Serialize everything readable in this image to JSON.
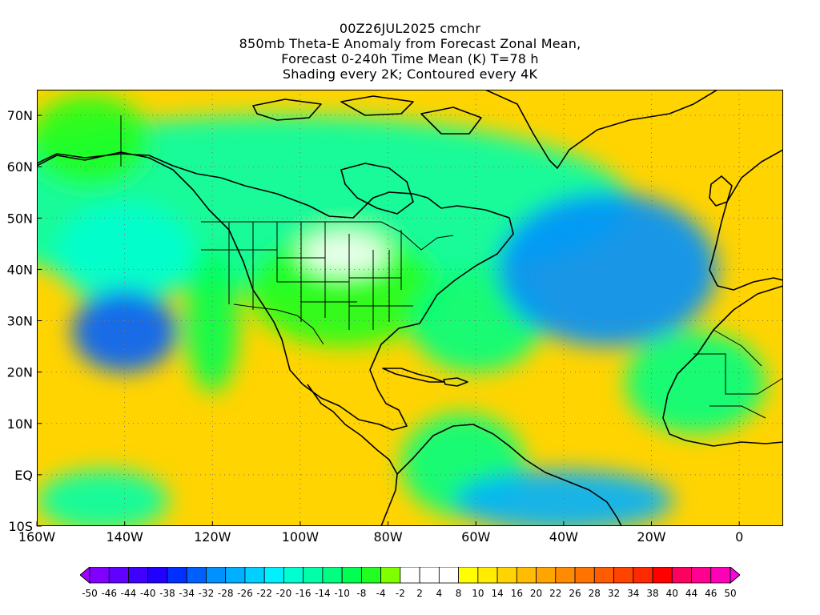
{
  "title_lines": [
    "00Z26JUL2025 cmchr",
    "850mb Theta-E Anomaly from Forecast Zonal Mean,",
    "Forecast 0-240h Time Mean (K) T=78 h",
    "Shading every 2K; Contoured every 4K"
  ],
  "chart_data": {
    "type": "heatmap",
    "projection": "lat-lon",
    "grid": "dotted",
    "axes": {
      "x_range_deg": [
        -160,
        10
      ],
      "y_range_deg": [
        -10,
        75
      ],
      "x_ticks": [
        {
          "value": -160,
          "label": "160W"
        },
        {
          "value": -140,
          "label": "140W"
        },
        {
          "value": -120,
          "label": "120W"
        },
        {
          "value": -100,
          "label": "100W"
        },
        {
          "value": -80,
          "label": "80W"
        },
        {
          "value": -60,
          "label": "60W"
        },
        {
          "value": -40,
          "label": "40W"
        },
        {
          "value": -20,
          "label": "20W"
        },
        {
          "value": 0,
          "label": "0"
        }
      ],
      "y_ticks": [
        {
          "value": -10,
          "label": "10S"
        },
        {
          "value": 0,
          "label": "EQ"
        },
        {
          "value": 10,
          "label": "10N"
        },
        {
          "value": 20,
          "label": "20N"
        },
        {
          "value": 30,
          "label": "30N"
        },
        {
          "value": 40,
          "label": "40N"
        },
        {
          "value": 50,
          "label": "50N"
        },
        {
          "value": 60,
          "label": "60N"
        },
        {
          "value": 70,
          "label": "70N"
        }
      ]
    },
    "colorbar": {
      "unit": "K",
      "labels": [
        "-50",
        "-46",
        "-44",
        "-40",
        "-38",
        "-34",
        "-32",
        "-28",
        "-26",
        "-22",
        "-20",
        "-16",
        "-14",
        "-10",
        "-8",
        "-4",
        "-2",
        "2",
        "4",
        "8",
        "10",
        "14",
        "16",
        "20",
        "22",
        "26",
        "28",
        "32",
        "34",
        "38",
        "40",
        "44",
        "46",
        "50"
      ],
      "colors": [
        "#a000ff",
        "#8000ff",
        "#6000ff",
        "#4000ff",
        "#2000ff",
        "#0030ff",
        "#0060ff",
        "#0090ff",
        "#00b0ff",
        "#00d0ff",
        "#00f0ff",
        "#00ffd0",
        "#00ffa8",
        "#00ff80",
        "#00ff50",
        "#20ff20",
        "#80ff00",
        "#ffffff",
        "#ffffff",
        "#ffffff",
        "#ffff00",
        "#ffec00",
        "#ffd400",
        "#ffbc00",
        "#ffa400",
        "#ff8c00",
        "#ff7400",
        "#ff5c00",
        "#ff4400",
        "#ff2a00",
        "#ff0000",
        "#ff0060",
        "#ff0090",
        "#ff00b8",
        "#ff00e0"
      ]
    },
    "field_regions": [
      {
        "level": 12,
        "lon": -105,
        "lat": 53,
        "rx": 80,
        "ry": 17
      },
      {
        "level": 15,
        "lon": -148,
        "lat": 65,
        "rx": 14,
        "ry": 9
      },
      {
        "level": 14,
        "lon": -120,
        "lat": 30,
        "rx": 6,
        "ry": 14
      },
      {
        "level": 15,
        "lon": -90,
        "lat": 36,
        "rx": 22,
        "ry": 11
      },
      {
        "level": 17,
        "lon": -90,
        "lat": 43,
        "rx": 10,
        "ry": 4
      },
      {
        "level": 13,
        "lon": -60,
        "lat": 30,
        "rx": 15,
        "ry": 10
      },
      {
        "level": 11,
        "lon": -140,
        "lat": 43,
        "rx": 16,
        "ry": 10
      },
      {
        "level": 6,
        "lon": -140,
        "lat": 28,
        "rx": 12,
        "ry": 8
      },
      {
        "level": 13,
        "lon": -63,
        "lat": 2,
        "rx": 14,
        "ry": 10
      },
      {
        "level": 13,
        "lon": -10,
        "lat": 18,
        "rx": 16,
        "ry": 10
      },
      {
        "level": 7,
        "lon": -30,
        "lat": 40,
        "rx": 25,
        "ry": 15
      },
      {
        "level": 8,
        "lon": -40,
        "lat": -5,
        "rx": 25,
        "ry": 6
      },
      {
        "level": 12,
        "lon": -145,
        "lat": -5,
        "rx": 15,
        "ry": 6
      }
    ]
  }
}
